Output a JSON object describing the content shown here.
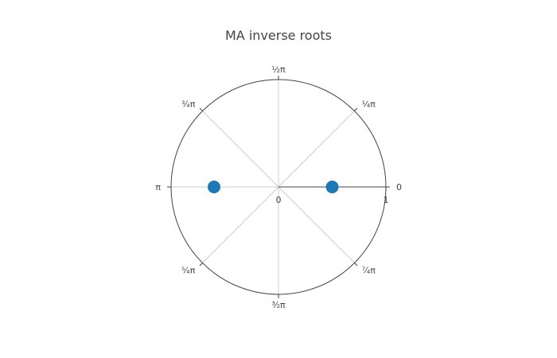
{
  "chart_data": {
    "type": "scatter",
    "coordinate_system": "polar",
    "title": "MA inverse roots",
    "radial_axis": {
      "range": [
        0,
        1
      ],
      "tick_labels": [
        "0",
        "1"
      ]
    },
    "angular_axis": {
      "unit": "radians",
      "ticks": [
        {
          "angle": 0,
          "label": "0"
        },
        {
          "angle": 0.7854,
          "label": "¼π"
        },
        {
          "angle": 1.5708,
          "label": "½π"
        },
        {
          "angle": 2.3562,
          "label": "¾π"
        },
        {
          "angle": 3.1416,
          "label": "π"
        },
        {
          "angle": 3.927,
          "label": "⁵⁄₄π"
        },
        {
          "angle": 4.7124,
          "label": "³⁄₂π"
        },
        {
          "angle": 5.4978,
          "label": "⁷⁄₄π"
        }
      ]
    },
    "grid": true,
    "series": [
      {
        "color": "#1f77b4",
        "points": [
          {
            "r": 0.5,
            "theta": 0
          },
          {
            "r": 0.6,
            "theta": 3.1416
          }
        ]
      }
    ]
  }
}
